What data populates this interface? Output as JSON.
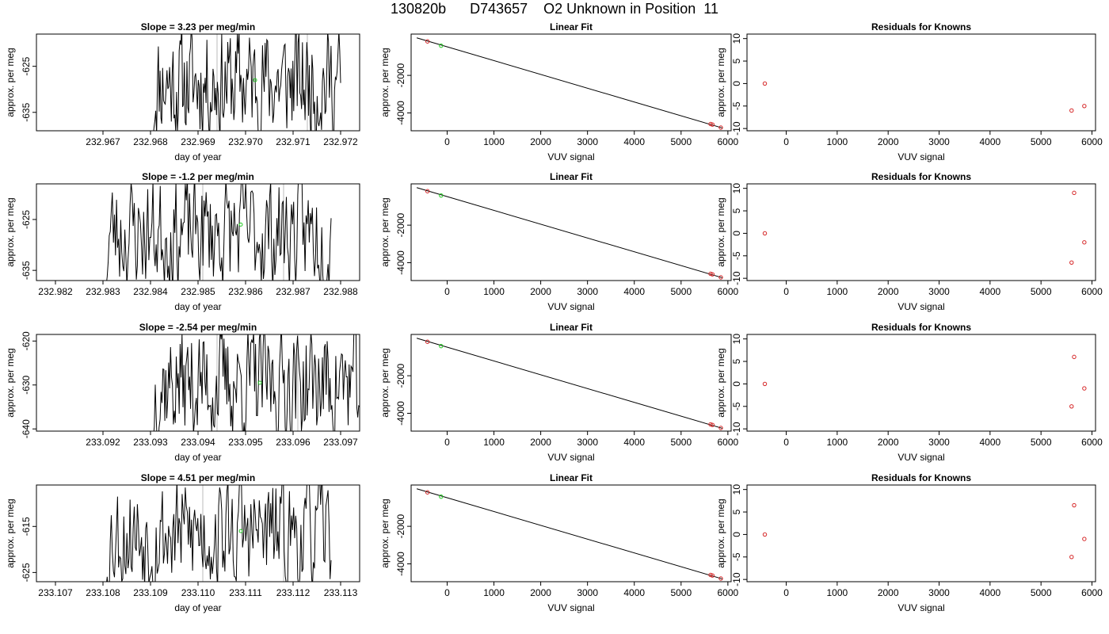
{
  "figure": {
    "title": "130820b      D743657    O2 Unknown in Position  11"
  },
  "colors": {
    "line": "#000000",
    "marker_known": "#d62728",
    "marker_unknown": "#22cc22",
    "vline": "#bbbbbb",
    "axis": "#000000"
  },
  "chart_data": [
    {
      "row": 1,
      "panel": "timeseries",
      "type": "line",
      "title": "Slope =  3.23  per meg/min",
      "xlabel": "day of year",
      "ylabel": "approx. per meg",
      "xlim": [
        232.9656,
        232.9724
      ],
      "ylim": [
        -639,
        -618
      ],
      "xticks": [
        232.967,
        232.968,
        232.969,
        232.97,
        232.971,
        232.972
      ],
      "xtick_labels": [
        "232.967",
        "232.968",
        "232.969",
        "232.970",
        "232.971",
        "232.972"
      ],
      "yticks": [
        -625,
        -635
      ],
      "ytick_labels": [
        "-625",
        "-635"
      ],
      "vlines": [
        232.9694,
        232.9713
      ],
      "series_x_range": [
        232.968,
        232.972
      ],
      "marker_unknown": [
        232.9702,
        -628
      ],
      "seed": 11
    },
    {
      "row": 1,
      "panel": "fit",
      "type": "scatter",
      "title": "Linear Fit",
      "xlabel": "VUV signal",
      "ylabel": "approx. per meg",
      "xlim": [
        -770,
        6070
      ],
      "ylim": [
        -4950,
        200
      ],
      "xticks": [
        0,
        1000,
        2000,
        3000,
        4000,
        5000,
        6000
      ],
      "xtick_labels": [
        "0",
        "1000",
        "2000",
        "3000",
        "4000",
        "5000",
        "6000"
      ],
      "yticks": [
        -2000,
        -4000
      ],
      "ytick_labels": [
        "-2000",
        "-4000"
      ],
      "line": [
        [
          -650,
          0
        ],
        [
          5880,
          -4800
        ]
      ],
      "known_points": [
        [
          -420,
          -190
        ],
        [
          5630,
          -4590
        ],
        [
          5670,
          -4620
        ],
        [
          5850,
          -4780
        ]
      ],
      "unknown_points": [
        [
          -130,
          -420
        ]
      ]
    },
    {
      "row": 1,
      "panel": "residuals",
      "type": "scatter",
      "title": "Residuals for Knowns",
      "xlabel": "VUV signal",
      "ylabel": "approx. per meg",
      "xlim": [
        -770,
        6070
      ],
      "ylim": [
        -10.5,
        11
      ],
      "xticks": [
        0,
        1000,
        2000,
        3000,
        4000,
        5000,
        6000
      ],
      "xtick_labels": [
        "0",
        "1000",
        "2000",
        "3000",
        "4000",
        "5000",
        "6000"
      ],
      "yticks": [
        10,
        5,
        0,
        -5,
        -10
      ],
      "ytick_labels": [
        "10",
        "5",
        "0",
        "-5",
        "-10"
      ],
      "points": [
        [
          -420,
          0
        ],
        [
          5600,
          -6
        ],
        [
          5850,
          -5
        ]
      ]
    },
    {
      "row": 2,
      "panel": "timeseries",
      "type": "line",
      "title": "Slope =  -1.2  per meg/min",
      "xlabel": "day of year",
      "ylabel": "approx. per meg",
      "xlim": [
        232.9816,
        232.9884
      ],
      "ylim": [
        -637,
        -618
      ],
      "xticks": [
        232.982,
        232.983,
        232.984,
        232.985,
        232.986,
        232.987,
        232.988
      ],
      "xtick_labels": [
        "232.982",
        "232.983",
        "232.984",
        "232.985",
        "232.986",
        "232.987",
        "232.988"
      ],
      "yticks": [
        -625,
        -635
      ],
      "ytick_labels": [
        "-625",
        "-635"
      ],
      "vlines": [
        232.9851,
        232.9868
      ],
      "series_x_range": [
        232.983,
        232.9878
      ],
      "marker_unknown": [
        232.9859,
        -626
      ],
      "seed": 23
    },
    {
      "row": 2,
      "panel": "fit",
      "type": "scatter",
      "title": "Linear Fit",
      "xlabel": "VUV signal",
      "ylabel": "approx. per meg",
      "xlim": [
        -770,
        6070
      ],
      "ylim": [
        -4950,
        200
      ],
      "xticks": [
        0,
        1000,
        2000,
        3000,
        4000,
        5000,
        6000
      ],
      "xtick_labels": [
        "0",
        "1000",
        "2000",
        "3000",
        "4000",
        "5000",
        "6000"
      ],
      "yticks": [
        -2000,
        -4000
      ],
      "ytick_labels": [
        "-2000",
        "-4000"
      ],
      "line": [
        [
          -650,
          0
        ],
        [
          5880,
          -4800
        ]
      ],
      "known_points": [
        [
          -420,
          -190
        ],
        [
          5630,
          -4590
        ],
        [
          5670,
          -4620
        ],
        [
          5850,
          -4780
        ]
      ],
      "unknown_points": [
        [
          -130,
          -420
        ]
      ]
    },
    {
      "row": 2,
      "panel": "residuals",
      "type": "scatter",
      "title": "Residuals for Knowns",
      "xlabel": "VUV signal",
      "ylabel": "approx. per meg",
      "xlim": [
        -770,
        6070
      ],
      "ylim": [
        -10.5,
        11
      ],
      "xticks": [
        0,
        1000,
        2000,
        3000,
        4000,
        5000,
        6000
      ],
      "xtick_labels": [
        "0",
        "1000",
        "2000",
        "3000",
        "4000",
        "5000",
        "6000"
      ],
      "yticks": [
        10,
        5,
        0,
        -5,
        -10
      ],
      "ytick_labels": [
        "10",
        "5",
        "0",
        "-5",
        "-10"
      ],
      "points": [
        [
          -420,
          0
        ],
        [
          5650,
          9
        ],
        [
          5600,
          -6.5
        ],
        [
          5850,
          -2
        ]
      ]
    },
    {
      "row": 3,
      "panel": "timeseries",
      "type": "line",
      "title": "Slope =  -2.54  per meg/min",
      "xlabel": "day of year",
      "ylabel": "approx. per meg",
      "xlim": [
        233.0906,
        233.0974
      ],
      "ylim": [
        -640.5,
        -618.5
      ],
      "xticks": [
        233.092,
        233.093,
        233.094,
        233.095,
        233.096,
        233.097
      ],
      "xtick_labels": [
        "233.092",
        "233.093",
        "233.094",
        "233.095",
        "233.096",
        "233.097"
      ],
      "yticks": [
        -620,
        -630,
        -640
      ],
      "ytick_labels": [
        "-620",
        "-630",
        "-640"
      ],
      "vlines": [
        233.0944,
        233.0961
      ],
      "series_x_range": [
        233.093,
        233.0974
      ],
      "marker_unknown": [
        233.0953,
        -629.5
      ],
      "seed": 37
    },
    {
      "row": 3,
      "panel": "fit",
      "type": "scatter",
      "title": "Linear Fit",
      "xlabel": "VUV signal",
      "ylabel": "approx. per meg",
      "xlim": [
        -770,
        6070
      ],
      "ylim": [
        -4950,
        200
      ],
      "xticks": [
        0,
        1000,
        2000,
        3000,
        4000,
        5000,
        6000
      ],
      "xtick_labels": [
        "0",
        "1000",
        "2000",
        "3000",
        "4000",
        "5000",
        "6000"
      ],
      "yticks": [
        -2000,
        -4000
      ],
      "ytick_labels": [
        "-2000",
        "-4000"
      ],
      "line": [
        [
          -650,
          0
        ],
        [
          5880,
          -4800
        ]
      ],
      "known_points": [
        [
          -420,
          -190
        ],
        [
          5630,
          -4590
        ],
        [
          5670,
          -4620
        ],
        [
          5850,
          -4780
        ]
      ],
      "unknown_points": [
        [
          -130,
          -420
        ]
      ]
    },
    {
      "row": 3,
      "panel": "residuals",
      "type": "scatter",
      "title": "Residuals for Knowns",
      "xlabel": "VUV signal",
      "ylabel": "approx. per meg",
      "xlim": [
        -770,
        6070
      ],
      "ylim": [
        -10.5,
        11
      ],
      "xticks": [
        0,
        1000,
        2000,
        3000,
        4000,
        5000,
        6000
      ],
      "xtick_labels": [
        "0",
        "1000",
        "2000",
        "3000",
        "4000",
        "5000",
        "6000"
      ],
      "yticks": [
        10,
        5,
        0,
        -5,
        -10
      ],
      "ytick_labels": [
        "10",
        "5",
        "0",
        "-5",
        "-10"
      ],
      "points": [
        [
          -420,
          0
        ],
        [
          5650,
          6
        ],
        [
          5600,
          -5
        ],
        [
          5850,
          -1
        ]
      ]
    },
    {
      "row": 4,
      "panel": "timeseries",
      "type": "line",
      "title": "Slope =  4.51  per meg/min",
      "xlabel": "day of year",
      "ylabel": "approx. per meg",
      "xlim": [
        233.1066,
        233.1134
      ],
      "ylim": [
        -627,
        -606
      ],
      "xticks": [
        233.107,
        233.108,
        233.109,
        233.11,
        233.111,
        233.112,
        233.113
      ],
      "xtick_labels": [
        "233.107",
        "233.108",
        "233.109",
        "233.110",
        "233.111",
        "233.112",
        "233.113"
      ],
      "yticks": [
        -615,
        -625
      ],
      "ytick_labels": [
        "-615",
        "-625"
      ],
      "vlines": [
        233.1101,
        233.1118
      ],
      "series_x_range": [
        233.108,
        233.1128
      ],
      "marker_unknown": [
        233.1109,
        -616
      ],
      "seed": 53
    },
    {
      "row": 4,
      "panel": "fit",
      "type": "scatter",
      "title": "Linear Fit",
      "xlabel": "VUV signal",
      "ylabel": "approx. per meg",
      "xlim": [
        -770,
        6070
      ],
      "ylim": [
        -4950,
        200
      ],
      "xticks": [
        0,
        1000,
        2000,
        3000,
        4000,
        5000,
        6000
      ],
      "xtick_labels": [
        "0",
        "1000",
        "2000",
        "3000",
        "4000",
        "5000",
        "6000"
      ],
      "yticks": [
        -2000,
        -4000
      ],
      "ytick_labels": [
        "-2000",
        "-4000"
      ],
      "line": [
        [
          -650,
          0
        ],
        [
          5880,
          -4800
        ]
      ],
      "known_points": [
        [
          -420,
          -190
        ],
        [
          5630,
          -4590
        ],
        [
          5670,
          -4620
        ],
        [
          5850,
          -4780
        ]
      ],
      "unknown_points": [
        [
          -130,
          -420
        ]
      ]
    },
    {
      "row": 4,
      "panel": "residuals",
      "type": "scatter",
      "title": "Residuals for Knowns",
      "xlabel": "VUV signal",
      "ylabel": "approx. per meg",
      "xlim": [
        -770,
        6070
      ],
      "ylim": [
        -10.5,
        11
      ],
      "xticks": [
        0,
        1000,
        2000,
        3000,
        4000,
        5000,
        6000
      ],
      "xtick_labels": [
        "0",
        "1000",
        "2000",
        "3000",
        "4000",
        "5000",
        "6000"
      ],
      "yticks": [
        10,
        5,
        0,
        -5,
        -10
      ],
      "ytick_labels": [
        "10",
        "5",
        "0",
        "-5",
        "-10"
      ],
      "points": [
        [
          -420,
          0
        ],
        [
          5650,
          6.5
        ],
        [
          5600,
          -5
        ],
        [
          5850,
          -1
        ]
      ]
    }
  ]
}
